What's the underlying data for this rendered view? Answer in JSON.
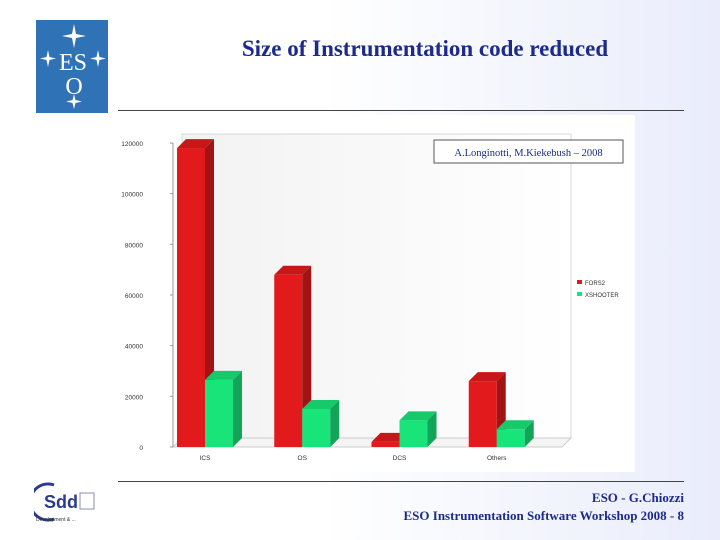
{
  "slide": {
    "title": "Size of Instrumentation code reduced",
    "author_line": "ESO - G.Chiozzi",
    "workshop_line": "ESO Instrumentation Software Workshop 2008 - 8"
  },
  "logos": {
    "eso": {
      "text": "ESO",
      "icon": "eso-star-logo"
    },
    "sdd": {
      "text": "Sdd",
      "subtext": "Development & ...",
      "icon": "sdd-logo"
    }
  },
  "chart_data": {
    "type": "bar",
    "annotation": "A.Longinotti, M.Kiekebush – 2008",
    "categories": [
      "ICS",
      "OS",
      "DCS",
      "Others"
    ],
    "series": [
      {
        "name": "FORS2",
        "values": [
          118000,
          68000,
          2000,
          26000
        ],
        "color": "#e31a1c"
      },
      {
        "name": "XSHOOTER",
        "values": [
          26500,
          15000,
          10500,
          7000
        ],
        "color": "#19e47a"
      }
    ],
    "ylim": [
      0,
      120000
    ],
    "yticks": [
      "0",
      "20000",
      "40000",
      "60000",
      "80000",
      "100000",
      "120000"
    ],
    "ytick_values": [
      0,
      20000,
      40000,
      60000,
      80000,
      100000,
      120000
    ],
    "grid": false,
    "legend_position": "right",
    "xlabel": "",
    "ylabel": "",
    "title": ""
  }
}
